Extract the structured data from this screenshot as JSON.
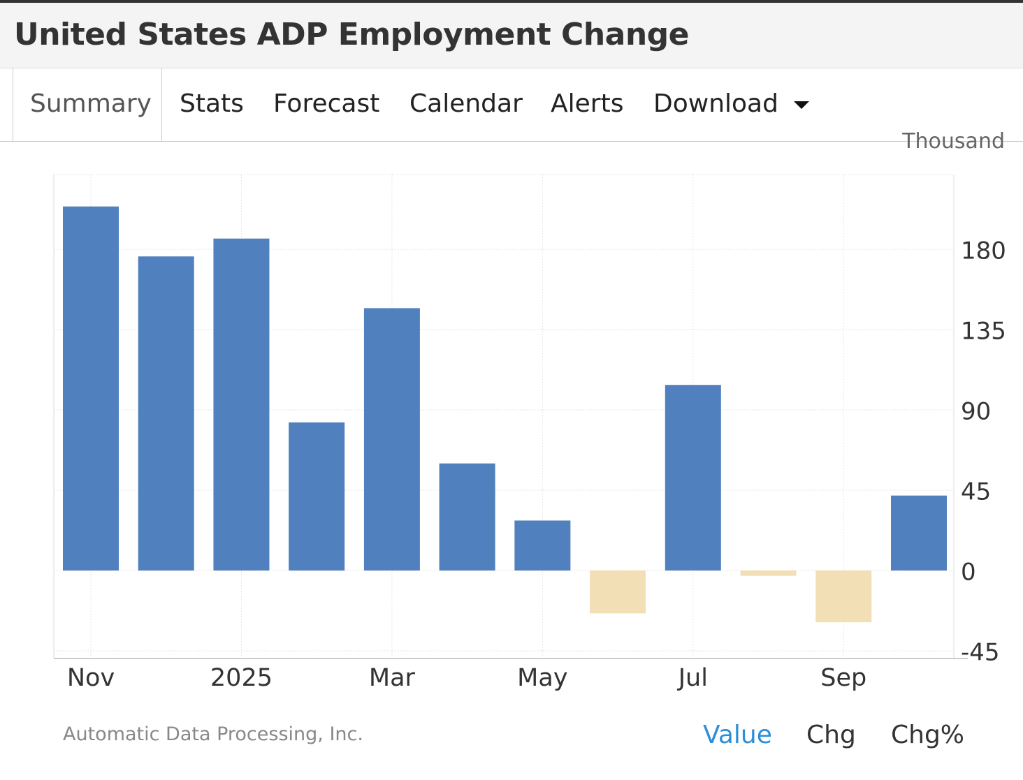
{
  "header": {
    "title": "United States ADP Employment Change"
  },
  "tabs": [
    {
      "label": "Summary",
      "active": true
    },
    {
      "label": "Stats"
    },
    {
      "label": "Forecast"
    },
    {
      "label": "Calendar"
    },
    {
      "label": "Alerts"
    },
    {
      "label": "Download",
      "icon": "caret-down-icon"
    }
  ],
  "chart_data": {
    "type": "bar",
    "unit_label": "Thousand",
    "categories": [
      "Nov 2024",
      "Dec 2024",
      "Jan 2025",
      "Feb 2025",
      "Mar 2025",
      "Apr 2025",
      "May 2025",
      "Jun 2025",
      "Jul 2025",
      "Aug 2025",
      "Sep 2025",
      "Oct 2025"
    ],
    "values": [
      204,
      176,
      186,
      83,
      147,
      60,
      28,
      -24,
      104,
      -3,
      -29,
      42
    ],
    "x_tick_labels": [
      "Nov",
      "2025",
      "Mar",
      "May",
      "Jul",
      "Sep"
    ],
    "y_ticks": [
      -45,
      0,
      45,
      90,
      135,
      180
    ],
    "ylim": [
      -50,
      222
    ],
    "grid": true,
    "colors": {
      "positive": "#5080bd",
      "negative": "#f3dfb6"
    }
  },
  "footer": {
    "source": "Automatic Data Processing, Inc.",
    "buttons": [
      {
        "label": "Value",
        "active": true
      },
      {
        "label": "Chg"
      },
      {
        "label": "Chg%"
      }
    ]
  }
}
